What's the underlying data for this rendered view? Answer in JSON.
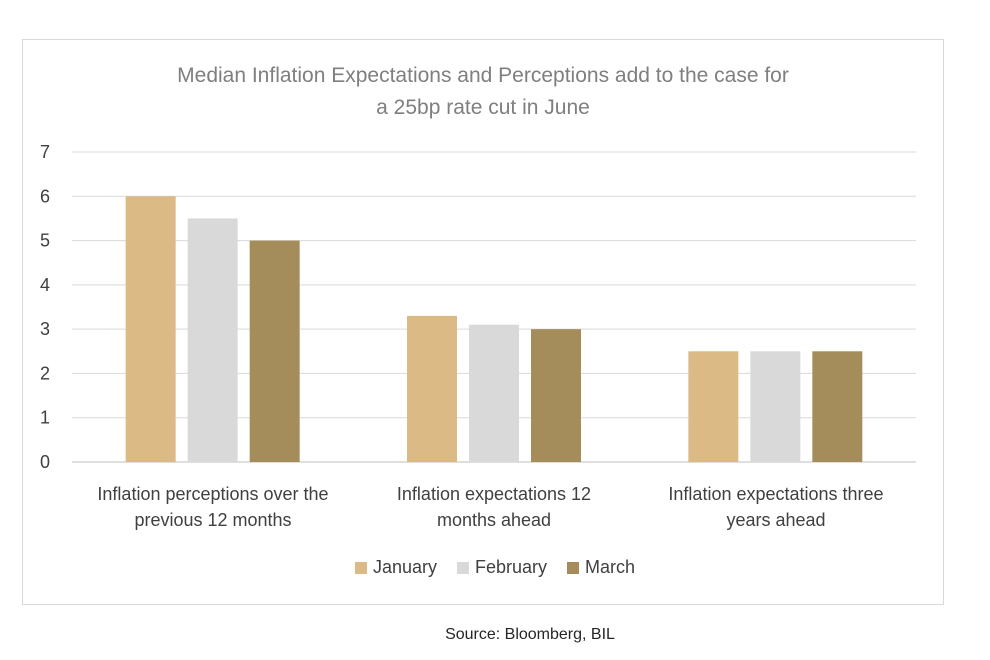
{
  "chart_data": {
    "type": "bar",
    "title_lines": [
      "Median Inflation Expectations and Perceptions add to the case for",
      "a 25bp rate cut in June"
    ],
    "categories": [
      [
        "Inflation perceptions over the",
        "previous 12 months"
      ],
      [
        "Inflation expectations 12",
        "months ahead"
      ],
      [
        "Inflation expectations three",
        "years ahead"
      ]
    ],
    "series": [
      {
        "name": "January",
        "color": "#dbba85",
        "values": [
          6.0,
          3.3,
          2.5
        ]
      },
      {
        "name": "February",
        "color": "#d9d9d9",
        "values": [
          5.5,
          3.1,
          2.5
        ]
      },
      {
        "name": "March",
        "color": "#a58d5b",
        "values": [
          5.0,
          3.0,
          2.5
        ]
      }
    ],
    "yticks": [
      "0",
      "1",
      "2",
      "3",
      "4",
      "5",
      "6",
      "7"
    ],
    "ylim": [
      0,
      7
    ],
    "grid": true,
    "legend_position": "bottom"
  },
  "source": "Source: Bloomberg, BIL"
}
